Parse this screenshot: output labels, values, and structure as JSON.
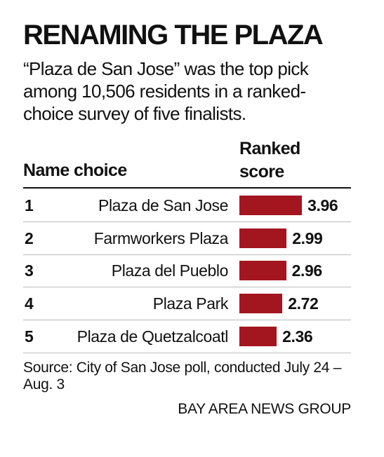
{
  "chart_data": {
    "type": "bar",
    "orientation": "horizontal",
    "title": "RENAMING THE PLAZA",
    "subtitle": "“Plaza de San Jose” was the top pick among 10,506 residents in a ranked-choice survey of five finalists.",
    "category_header": "Name choice",
    "value_header": "Ranked score",
    "ranks": [
      1,
      2,
      3,
      4,
      5
    ],
    "categories": [
      "Plaza de San Jose",
      "Farmworkers Plaza",
      "Plaza del Pueblo",
      "Plaza Park",
      "Plaza de Quetzalcoatl"
    ],
    "values": [
      3.96,
      2.99,
      2.96,
      2.72,
      2.36
    ],
    "color": "#a3161f",
    "source": "Source: City of San Jose poll, conducted July 24 – Aug. 3",
    "credit": "BAY AREA NEWS GROUP"
  }
}
